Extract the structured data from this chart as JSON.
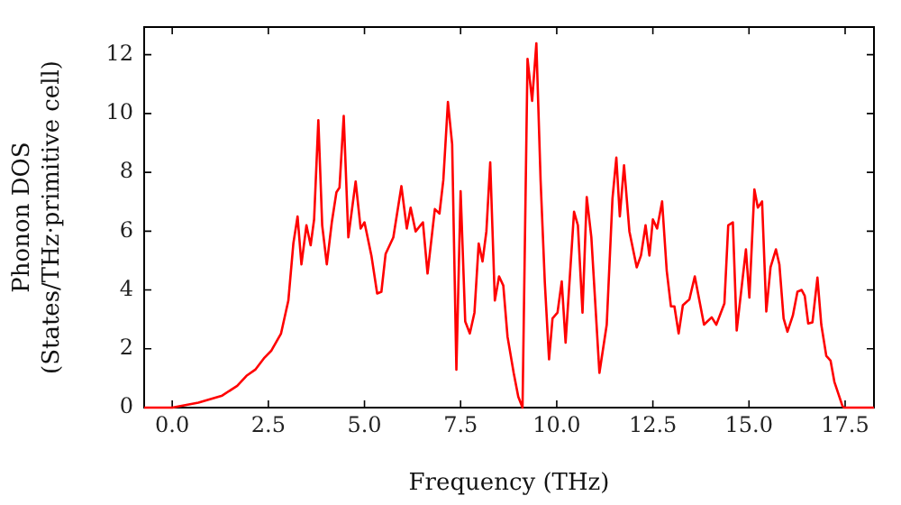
{
  "chart_data": {
    "type": "line",
    "xlabel": "Frequency (THz)",
    "ylabel": "Phonon DOS\n(States/THz·primitive cell)",
    "x": [
      -0.73,
      0,
      0.68,
      1.3,
      1.69,
      1.93,
      2.16,
      2.4,
      2.58,
      2.83,
      3.02,
      3.15,
      3.26,
      3.36,
      3.49,
      3.6,
      3.69,
      3.8,
      3.9,
      4.02,
      4.15,
      4.27,
      4.35,
      4.46,
      4.58,
      4.77,
      4.9,
      5.0,
      5.18,
      5.33,
      5.44,
      5.55,
      5.75,
      5.96,
      6.1,
      6.2,
      6.33,
      6.52,
      6.64,
      6.83,
      6.95,
      7.05,
      7.17,
      7.28,
      7.39,
      7.5,
      7.62,
      7.74,
      7.86,
      7.97,
      8.07,
      8.17,
      8.27,
      8.39,
      8.5,
      8.61,
      8.72,
      8.88,
      9.0,
      9.11,
      9.24,
      9.36,
      9.47,
      9.58,
      9.69,
      9.8,
      9.89,
      10.02,
      10.13,
      10.23,
      10.45,
      10.55,
      10.67,
      10.78,
      10.9,
      11.11,
      11.3,
      11.45,
      11.55,
      11.64,
      11.75,
      11.89,
      12.08,
      12.19,
      12.31,
      12.41,
      12.5,
      12.61,
      12.74,
      12.86,
      12.97,
      13.06,
      13.17,
      13.28,
      13.45,
      13.59,
      13.83,
      14.03,
      14.15,
      14.36,
      14.46,
      14.58,
      14.68,
      14.92,
      15.01,
      15.14,
      15.23,
      15.34,
      15.45,
      15.56,
      15.7,
      15.79,
      15.9,
      16.0,
      16.14,
      16.26,
      16.37,
      16.45,
      16.54,
      16.65,
      16.78,
      16.88,
      17.01,
      17.12,
      17.22,
      17.43,
      17.47,
      18.25
    ],
    "series": [
      {
        "color": "#ff0000",
        "values": [
          0,
          0,
          0.17,
          0.41,
          0.74,
          1.08,
          1.29,
          1.7,
          1.94,
          2.52,
          3.64,
          5.58,
          6.5,
          4.87,
          6.2,
          5.52,
          6.4,
          9.77,
          6.2,
          4.87,
          6.3,
          7.32,
          7.48,
          9.92,
          5.79,
          7.69,
          6.09,
          6.3,
          5.17,
          3.88,
          3.94,
          5.23,
          5.79,
          7.53,
          6.09,
          6.8,
          5.99,
          6.3,
          4.56,
          6.75,
          6.6,
          7.73,
          10.39,
          8.96,
          1.29,
          7.36,
          2.93,
          2.52,
          3.23,
          5.58,
          4.97,
          5.99,
          8.34,
          3.64,
          4.46,
          4.15,
          2.41,
          1.18,
          0.37,
          0,
          11.86,
          10.43,
          12.39,
          7.73,
          4.25,
          1.64,
          3.03,
          3.23,
          4.29,
          2.21,
          6.66,
          6.2,
          3.23,
          7.16,
          5.79,
          1.18,
          2.82,
          7.12,
          8.5,
          6.5,
          8.24,
          5.99,
          4.77,
          5.17,
          6.2,
          5.17,
          6.4,
          6.09,
          7.01,
          4.66,
          3.44,
          3.44,
          2.52,
          3.48,
          3.68,
          4.46,
          2.82,
          3.07,
          2.82,
          3.54,
          6.2,
          6.3,
          2.62,
          5.38,
          3.74,
          7.42,
          6.8,
          7.01,
          3.27,
          4.77,
          5.38,
          4.87,
          3.03,
          2.58,
          3.13,
          3.94,
          4.0,
          3.8,
          2.86,
          2.9,
          4.42,
          2.82,
          1.76,
          1.6,
          0.88,
          0.06,
          0,
          0
        ]
      }
    ],
    "xlim": [
      -0.73,
      18.25
    ],
    "ylim": [
      0,
      12.94
    ],
    "xticks": [
      {
        "value": 0,
        "label": "0.0"
      },
      {
        "value": 2.5,
        "label": "2.5"
      },
      {
        "value": 5,
        "label": "5.0"
      },
      {
        "value": 7.5,
        "label": "7.5"
      },
      {
        "value": 10,
        "label": "10.0"
      },
      {
        "value": 12.5,
        "label": "12.5"
      },
      {
        "value": 15,
        "label": "15.0"
      },
      {
        "value": 17.5,
        "label": "17.5"
      }
    ],
    "yticks": [
      0,
      2,
      4,
      6,
      8,
      10,
      12
    ],
    "grid": false,
    "legend": false,
    "marker": "none",
    "line_style": "solid"
  }
}
